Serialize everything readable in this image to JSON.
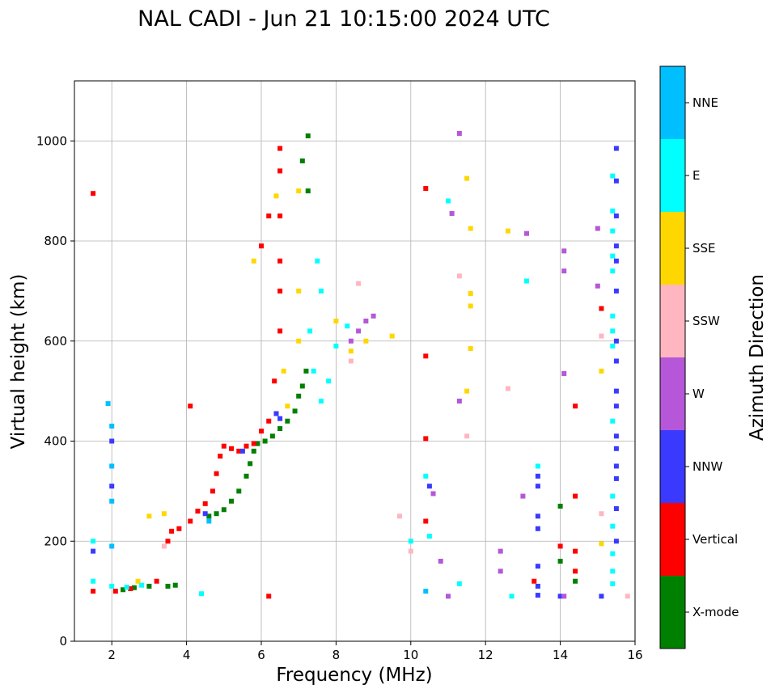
{
  "chart_data": {
    "type": "scatter",
    "title": "NAL CADI - Jun 21 10:15:00 2024 UTC",
    "xlabel": "Frequency (MHz)",
    "ylabel": "Virtual height (km)",
    "xlim": [
      1,
      16
    ],
    "ylim": [
      0,
      1120
    ],
    "xticks": [
      "2",
      "4",
      "6",
      "8",
      "10",
      "12",
      "14",
      "16"
    ],
    "yticks": [
      "0",
      "200",
      "400",
      "600",
      "800",
      "1000"
    ],
    "grid": true,
    "colorbar": {
      "label": "Azimuth Direction",
      "categories": [
        {
          "name": "X-mode",
          "color": "#008000"
        },
        {
          "name": "Vertical",
          "color": "#ff0000"
        },
        {
          "name": "NNW",
          "color": "#3a3aff"
        },
        {
          "name": "W",
          "color": "#b557d8"
        },
        {
          "name": "SSW",
          "color": "#ffb6c1"
        },
        {
          "name": "SSE",
          "color": "#ffd700"
        },
        {
          "name": "E",
          "color": "#00ffff"
        },
        {
          "name": "NNE",
          "color": "#00bfff"
        }
      ]
    },
    "series": [
      {
        "name": "X-mode",
        "points": [
          [
            2.3,
            103
          ],
          [
            2.6,
            107
          ],
          [
            3.0,
            110
          ],
          [
            3.5,
            110
          ],
          [
            3.7,
            112
          ],
          [
            4.6,
            250
          ],
          [
            4.8,
            255
          ],
          [
            5.0,
            263
          ],
          [
            5.2,
            280
          ],
          [
            5.4,
            300
          ],
          [
            5.6,
            330
          ],
          [
            5.7,
            355
          ],
          [
            5.8,
            380
          ],
          [
            5.9,
            395
          ],
          [
            6.1,
            400
          ],
          [
            6.3,
            410
          ],
          [
            6.5,
            425
          ],
          [
            6.7,
            440
          ],
          [
            6.9,
            460
          ],
          [
            7.0,
            490
          ],
          [
            7.1,
            510
          ],
          [
            7.2,
            540
          ],
          [
            7.25,
            900
          ],
          [
            7.25,
            1010
          ],
          [
            7.1,
            960
          ],
          [
            14.0,
            270
          ],
          [
            14.0,
            160
          ],
          [
            14.4,
            120
          ]
        ]
      },
      {
        "name": "Vertical",
        "points": [
          [
            1.5,
            100
          ],
          [
            2.1,
            100
          ],
          [
            2.5,
            105
          ],
          [
            3.2,
            120
          ],
          [
            3.5,
            200
          ],
          [
            3.6,
            220
          ],
          [
            3.8,
            225
          ],
          [
            4.1,
            240
          ],
          [
            4.3,
            260
          ],
          [
            4.5,
            275
          ],
          [
            4.7,
            300
          ],
          [
            4.8,
            335
          ],
          [
            4.9,
            370
          ],
          [
            5.0,
            390
          ],
          [
            5.2,
            385
          ],
          [
            5.4,
            380
          ],
          [
            5.6,
            390
          ],
          [
            5.8,
            395
          ],
          [
            6.0,
            420
          ],
          [
            6.2,
            440
          ],
          [
            6.35,
            520
          ],
          [
            6.5,
            620
          ],
          [
            6.5,
            700
          ],
          [
            6.5,
            760
          ],
          [
            6.5,
            850
          ],
          [
            6.5,
            940
          ],
          [
            6.5,
            985
          ],
          [
            6.2,
            850
          ],
          [
            6.0,
            790
          ],
          [
            1.5,
            895
          ],
          [
            4.1,
            470
          ],
          [
            6.2,
            90
          ],
          [
            10.4,
            905
          ],
          [
            10.4,
            570
          ],
          [
            10.4,
            405
          ],
          [
            10.4,
            240
          ],
          [
            14.4,
            470
          ],
          [
            14.4,
            290
          ],
          [
            14.4,
            180
          ],
          [
            14.4,
            140
          ],
          [
            13.3,
            120
          ],
          [
            15.1,
            665
          ],
          [
            14.0,
            190
          ]
        ]
      },
      {
        "name": "NNW",
        "points": [
          [
            1.5,
            180
          ],
          [
            2.0,
            400
          ],
          [
            2.0,
            310
          ],
          [
            4.5,
            255
          ],
          [
            5.5,
            380
          ],
          [
            6.4,
            455
          ],
          [
            6.5,
            445
          ],
          [
            10.5,
            310
          ],
          [
            13.4,
            330
          ],
          [
            13.4,
            310
          ],
          [
            13.4,
            250
          ],
          [
            13.4,
            225
          ],
          [
            13.4,
            150
          ],
          [
            13.4,
            110
          ],
          [
            13.4,
            92
          ],
          [
            14.0,
            90
          ],
          [
            15.1,
            90
          ],
          [
            15.5,
            985
          ],
          [
            15.5,
            920
          ],
          [
            15.5,
            850
          ],
          [
            15.5,
            790
          ],
          [
            15.5,
            760
          ],
          [
            15.5,
            700
          ],
          [
            15.5,
            600
          ],
          [
            15.5,
            560
          ],
          [
            15.5,
            500
          ],
          [
            15.5,
            470
          ],
          [
            15.5,
            410
          ],
          [
            15.5,
            385
          ],
          [
            15.5,
            350
          ],
          [
            15.5,
            325
          ],
          [
            15.5,
            265
          ],
          [
            15.5,
            200
          ]
        ]
      },
      {
        "name": "W",
        "points": [
          [
            8.4,
            600
          ],
          [
            8.6,
            620
          ],
          [
            8.8,
            640
          ],
          [
            9.0,
            650
          ],
          [
            12.4,
            180
          ],
          [
            12.4,
            140
          ],
          [
            13.0,
            290
          ],
          [
            13.1,
            815
          ],
          [
            14.1,
            780
          ],
          [
            14.1,
            740
          ],
          [
            15.0,
            825
          ],
          [
            15.0,
            710
          ],
          [
            14.1,
            535
          ],
          [
            11.3,
            1015
          ],
          [
            11.1,
            855
          ],
          [
            11.3,
            480
          ],
          [
            10.8,
            160
          ],
          [
            11.0,
            90
          ],
          [
            10.6,
            295
          ],
          [
            14.1,
            90
          ]
        ]
      },
      {
        "name": "SSW",
        "points": [
          [
            8.6,
            715
          ],
          [
            8.4,
            560
          ],
          [
            9.7,
            250
          ],
          [
            10.0,
            180
          ],
          [
            11.3,
            730
          ],
          [
            11.5,
            410
          ],
          [
            12.6,
            505
          ],
          [
            15.1,
            610
          ],
          [
            15.1,
            255
          ],
          [
            15.8,
            90
          ],
          [
            3.4,
            190
          ]
        ]
      },
      {
        "name": "SSE",
        "points": [
          [
            3.4,
            255
          ],
          [
            5.8,
            760
          ],
          [
            6.4,
            890
          ],
          [
            6.6,
            540
          ],
          [
            6.7,
            470
          ],
          [
            7.0,
            700
          ],
          [
            7.0,
            600
          ],
          [
            7.0,
            900
          ],
          [
            8.0,
            640
          ],
          [
            8.4,
            580
          ],
          [
            8.8,
            600
          ],
          [
            9.5,
            610
          ],
          [
            11.5,
            925
          ],
          [
            11.6,
            825
          ],
          [
            11.6,
            695
          ],
          [
            11.6,
            670
          ],
          [
            11.6,
            585
          ],
          [
            11.5,
            500
          ],
          [
            12.6,
            820
          ],
          [
            15.1,
            540
          ],
          [
            15.1,
            195
          ],
          [
            3.0,
            250
          ],
          [
            2.7,
            120
          ]
        ]
      },
      {
        "name": "E",
        "points": [
          [
            1.5,
            200
          ],
          [
            1.5,
            120
          ],
          [
            2.0,
            110
          ],
          [
            2.4,
            108
          ],
          [
            2.8,
            112
          ],
          [
            7.3,
            620
          ],
          [
            7.5,
            760
          ],
          [
            7.6,
            700
          ],
          [
            7.4,
            540
          ],
          [
            7.6,
            480
          ],
          [
            7.8,
            520
          ],
          [
            8.0,
            590
          ],
          [
            8.3,
            630
          ],
          [
            10.4,
            330
          ],
          [
            10.5,
            210
          ],
          [
            11.0,
            880
          ],
          [
            11.3,
            115
          ],
          [
            12.7,
            90
          ],
          [
            13.1,
            720
          ],
          [
            13.4,
            350
          ],
          [
            15.4,
            930
          ],
          [
            15.4,
            860
          ],
          [
            15.4,
            820
          ],
          [
            15.4,
            770
          ],
          [
            15.4,
            740
          ],
          [
            15.4,
            650
          ],
          [
            15.4,
            620
          ],
          [
            15.4,
            590
          ],
          [
            15.4,
            440
          ],
          [
            15.4,
            290
          ],
          [
            15.4,
            230
          ],
          [
            15.4,
            175
          ],
          [
            15.4,
            140
          ],
          [
            15.4,
            115
          ],
          [
            4.4,
            95
          ],
          [
            10.0,
            200
          ]
        ]
      },
      {
        "name": "NNE",
        "points": [
          [
            1.9,
            475
          ],
          [
            2.0,
            430
          ],
          [
            2.0,
            350
          ],
          [
            2.0,
            280
          ],
          [
            2.0,
            190
          ],
          [
            4.6,
            240
          ],
          [
            10.4,
            100
          ]
        ]
      }
    ]
  }
}
